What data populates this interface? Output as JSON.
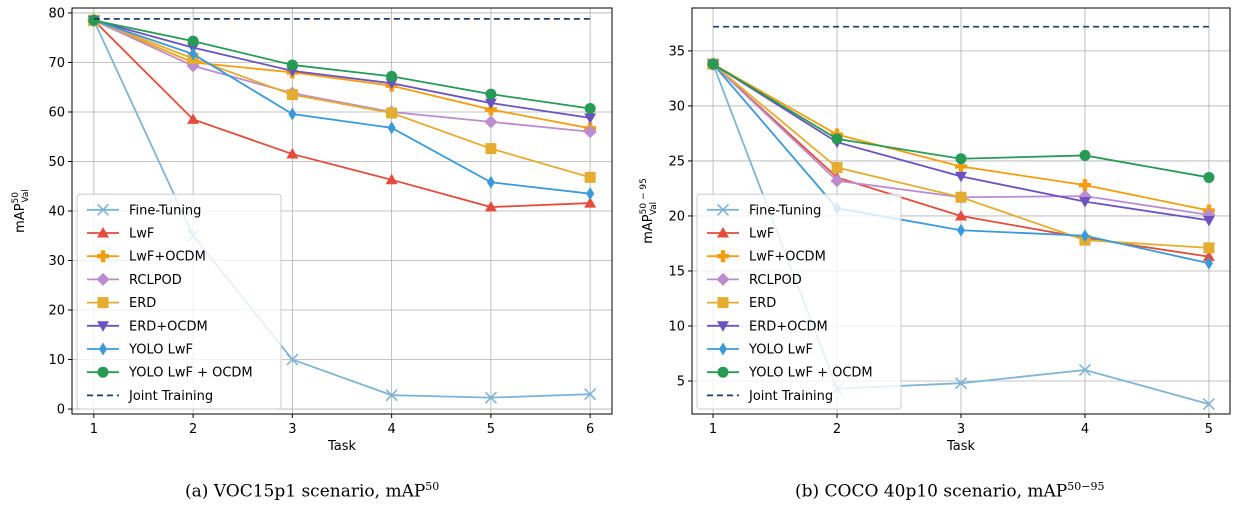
{
  "chart_data": [
    {
      "type": "line",
      "xlabel": "Task",
      "ylabel_main": "mAP",
      "ylabel_sup": "50",
      "ylabel_sub": "Val",
      "caption": {
        "text": "(a) VOC15p1 scenario, mAP",
        "sup": "50"
      },
      "x": [
        1,
        2,
        3,
        4,
        5,
        6
      ],
      "xlim": [
        0.78,
        6.22
      ],
      "ylim": [
        -1,
        81
      ],
      "yticks": [
        0,
        10,
        20,
        30,
        40,
        50,
        60,
        70,
        80
      ],
      "grid": true,
      "legend_position": "lower left",
      "series": [
        {
          "name": "Fine-Tuning",
          "color": "#7fb4d6",
          "marker": "x",
          "values": [
            78.5,
            35.0,
            10.0,
            2.8,
            2.3,
            3.0
          ]
        },
        {
          "name": "LwF",
          "color": "#e54c3c",
          "marker": "triangle-up",
          "values": [
            78.5,
            58.5,
            51.5,
            46.3,
            40.8,
            41.6
          ]
        },
        {
          "name": "LwF+OCDM",
          "color": "#f59d0e",
          "marker": "plus",
          "values": [
            78.5,
            70.0,
            68.0,
            65.3,
            60.5,
            56.7
          ]
        },
        {
          "name": "RCLPOD",
          "color": "#bb8dcf",
          "marker": "diamond",
          "values": [
            78.5,
            69.3,
            63.8,
            60.0,
            58.0,
            56.0
          ]
        },
        {
          "name": "ERD",
          "color": "#e5ad30",
          "marker": "square",
          "values": [
            78.5,
            70.8,
            63.5,
            59.8,
            52.6,
            46.8
          ]
        },
        {
          "name": "ERD+OCDM",
          "color": "#6a53c0",
          "marker": "triangle-down",
          "values": [
            78.5,
            73.0,
            68.3,
            65.8,
            61.8,
            58.8
          ]
        },
        {
          "name": "YOLO LwF",
          "color": "#3a9ad9",
          "marker": "thin-diamond",
          "values": [
            78.5,
            71.7,
            59.6,
            56.8,
            45.8,
            43.5
          ]
        },
        {
          "name": "YOLO LwF + OCDM",
          "color": "#279a55",
          "marker": "circle",
          "values": [
            78.5,
            74.3,
            69.5,
            67.2,
            63.6,
            60.7
          ]
        },
        {
          "name": "Joint Training",
          "color": "#1c3f66",
          "marker": "dashed",
          "values": [
            78.8,
            78.8,
            78.8,
            78.8,
            78.8,
            78.8
          ]
        }
      ]
    },
    {
      "type": "line",
      "xlabel": "Task",
      "ylabel_main": "mAP",
      "ylabel_sup": "50 − 95",
      "ylabel_sub": "Val",
      "caption": {
        "text": "(b) COCO 40p10 scenario, mAP",
        "sup": "50−95"
      },
      "x": [
        1,
        2,
        3,
        4,
        5
      ],
      "xlim": [
        0.83,
        5.17
      ],
      "ylim": [
        2.0,
        38.9
      ],
      "yticks": [
        5,
        10,
        15,
        20,
        25,
        30,
        35
      ],
      "grid": true,
      "legend_position": "lower left",
      "series": [
        {
          "name": "Fine-Tuning",
          "color": "#7fb4d6",
          "marker": "x",
          "values": [
            33.8,
            4.3,
            4.8,
            6.0,
            2.9
          ]
        },
        {
          "name": "LwF",
          "color": "#e54c3c",
          "marker": "triangle-up",
          "values": [
            33.8,
            23.5,
            20.0,
            18.0,
            16.3
          ]
        },
        {
          "name": "LwF+OCDM",
          "color": "#f59d0e",
          "marker": "plus",
          "values": [
            33.8,
            27.4,
            24.5,
            22.8,
            20.5
          ]
        },
        {
          "name": "RCLPOD",
          "color": "#bb8dcf",
          "marker": "diamond",
          "values": [
            33.8,
            23.2,
            21.7,
            21.8,
            20.1
          ]
        },
        {
          "name": "ERD",
          "color": "#e5ad30",
          "marker": "square",
          "values": [
            33.8,
            24.4,
            21.7,
            17.8,
            17.1
          ]
        },
        {
          "name": "ERD+OCDM",
          "color": "#6a53c0",
          "marker": "triangle-down",
          "values": [
            33.8,
            26.7,
            23.6,
            21.3,
            19.6
          ]
        },
        {
          "name": "YOLO LwF",
          "color": "#3a9ad9",
          "marker": "thin-diamond",
          "values": [
            33.8,
            20.7,
            18.7,
            18.2,
            15.7
          ]
        },
        {
          "name": "YOLO LwF + OCDM",
          "color": "#279a55",
          "marker": "circle",
          "values": [
            33.8,
            27.0,
            25.2,
            25.5,
            23.5
          ]
        },
        {
          "name": "Joint Training",
          "color": "#1c3f66",
          "marker": "dashed",
          "values": [
            37.2,
            37.2,
            37.2,
            37.2,
            37.2
          ]
        }
      ]
    }
  ]
}
